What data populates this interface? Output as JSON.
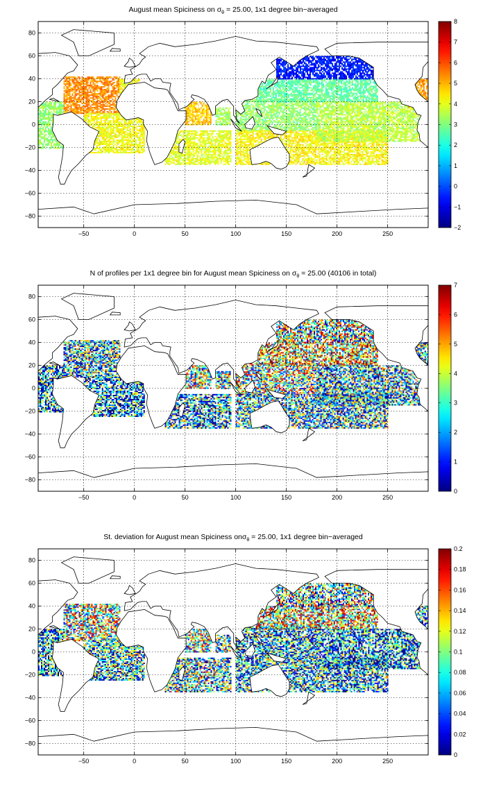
{
  "chart_data": [
    {
      "type": "heatmap",
      "title_prefix": "August mean Spiciness on ",
      "title_symbol": "σ",
      "title_sub": "θ",
      "title_suffix": " = 25.00, 1x1 degree bin−averaged",
      "xlim": [
        -95,
        290
      ],
      "ylim": [
        -90,
        90
      ],
      "x_ticks": [
        "−50",
        "0",
        "50",
        "100",
        "150",
        "200",
        "250"
      ],
      "x_tick_values": [
        -50,
        0,
        50,
        100,
        150,
        200,
        250
      ],
      "y_ticks": [
        "80",
        "60",
        "40",
        "20",
        "0",
        "−20",
        "−40",
        "−60",
        "−80"
      ],
      "y_tick_values": [
        80,
        60,
        40,
        20,
        0,
        -20,
        -40,
        -60,
        -80
      ],
      "grid": true,
      "colorbar": {
        "min": -2,
        "max": 8,
        "colormap": "jet",
        "ticks": [
          "8",
          "7",
          "6",
          "5",
          "4",
          "3",
          "2",
          "1",
          "0",
          "−1",
          "−2"
        ],
        "tick_values": [
          8,
          7,
          6,
          5,
          4,
          3,
          2,
          1,
          0,
          -1,
          -2
        ]
      },
      "regions": [
        {
          "lon": [
            -95,
            -70
          ],
          "lat": [
            -20,
            20
          ],
          "value": 3.2
        },
        {
          "lon": [
            -70,
            -15
          ],
          "lat": [
            10,
            42
          ],
          "value": 5.4
        },
        {
          "lon": [
            -15,
            5
          ],
          "lat": [
            25,
            40
          ],
          "value": 4.2
        },
        {
          "lon": [
            -50,
            10
          ],
          "lat": [
            -25,
            10
          ],
          "value": 4.2
        },
        {
          "lon": [
            30,
            95
          ],
          "lat": [
            -35,
            -5
          ],
          "value": 4.0
        },
        {
          "lon": [
            50,
            75
          ],
          "lat": [
            0,
            20
          ],
          "value": 4.8
        },
        {
          "lon": [
            80,
            95
          ],
          "lat": [
            0,
            15
          ],
          "value": 3.3
        },
        {
          "lon": [
            100,
            180
          ],
          "lat": [
            -5,
            22
          ],
          "value": 3.2
        },
        {
          "lon": [
            120,
            240
          ],
          "lat": [
            20,
            40
          ],
          "value": 2.7
        },
        {
          "lon": [
            140,
            240
          ],
          "lat": [
            40,
            60
          ],
          "value": -0.5
        },
        {
          "lon": [
            100,
            250
          ],
          "lat": [
            -35,
            -5
          ],
          "value": 4.3
        },
        {
          "lon": [
            180,
            285
          ],
          "lat": [
            -15,
            20
          ],
          "value": 3.6
        },
        {
          "lon": [
            270,
            290
          ],
          "lat": [
            15,
            40
          ],
          "value": 5.3
        }
      ]
    },
    {
      "type": "heatmap",
      "title_prefix": "N of profiles per 1x1 degree bin for August mean Spiciness on ",
      "title_symbol": "σ",
      "title_sub": "θ",
      "title_suffix": " = 25.00 (40106 in total)",
      "xlim": [
        -95,
        290
      ],
      "ylim": [
        -90,
        90
      ],
      "x_ticks": [
        "−50",
        "0",
        "50",
        "100",
        "150",
        "200",
        "250"
      ],
      "x_tick_values": [
        -50,
        0,
        50,
        100,
        150,
        200,
        250
      ],
      "y_ticks": [
        "80",
        "60",
        "40",
        "20",
        "0",
        "−20",
        "−40",
        "−60",
        "−80"
      ],
      "y_tick_values": [
        80,
        60,
        40,
        20,
        0,
        -20,
        -40,
        -60,
        -80
      ],
      "grid": true,
      "colorbar": {
        "min": 0,
        "max": 7,
        "colormap": "jet",
        "ticks": [
          "7",
          "6",
          "5",
          "4",
          "3",
          "2",
          "1",
          "0"
        ],
        "tick_values": [
          7,
          6,
          5,
          4,
          3,
          2,
          1,
          0
        ]
      },
      "regions": [
        {
          "lon": [
            -95,
            -70
          ],
          "lat": [
            -20,
            20
          ],
          "value": 2.0
        },
        {
          "lon": [
            -70,
            -15
          ],
          "lat": [
            10,
            42
          ],
          "value": 2.5
        },
        {
          "lon": [
            -50,
            10
          ],
          "lat": [
            -25,
            10
          ],
          "value": 1.8
        },
        {
          "lon": [
            30,
            95
          ],
          "lat": [
            -35,
            -5
          ],
          "value": 2.2
        },
        {
          "lon": [
            50,
            75
          ],
          "lat": [
            0,
            20
          ],
          "value": 3.5
        },
        {
          "lon": [
            80,
            95
          ],
          "lat": [
            0,
            15
          ],
          "value": 3.0
        },
        {
          "lon": [
            100,
            180
          ],
          "lat": [
            -5,
            22
          ],
          "value": 3.5
        },
        {
          "lon": [
            120,
            240
          ],
          "lat": [
            20,
            40
          ],
          "value": 4.5
        },
        {
          "lon": [
            140,
            240
          ],
          "lat": [
            40,
            60
          ],
          "value": 3.5
        },
        {
          "lon": [
            100,
            250
          ],
          "lat": [
            -35,
            -5
          ],
          "value": 2.5
        },
        {
          "lon": [
            180,
            285
          ],
          "lat": [
            -15,
            20
          ],
          "value": 2.5
        },
        {
          "lon": [
            270,
            290
          ],
          "lat": [
            15,
            40
          ],
          "value": 2.5
        }
      ]
    },
    {
      "type": "heatmap",
      "title_prefix": "St. deviation for August mean Spiciness on",
      "title_symbol": "σ",
      "title_sub": "θ",
      "title_suffix": " = 25.00, 1x1 degree bin−averaged",
      "xlim": [
        -95,
        290
      ],
      "ylim": [
        -90,
        90
      ],
      "x_ticks": [
        "−50",
        "0",
        "50",
        "100",
        "150",
        "200",
        "250"
      ],
      "x_tick_values": [
        -50,
        0,
        50,
        100,
        150,
        200,
        250
      ],
      "y_ticks": [
        "80",
        "60",
        "40",
        "20",
        "0",
        "−20",
        "−40",
        "−60",
        "−80"
      ],
      "y_tick_values": [
        80,
        60,
        40,
        20,
        0,
        -20,
        -40,
        -60,
        -80
      ],
      "grid": true,
      "colorbar": {
        "min": 0,
        "max": 0.2,
        "colormap": "jet",
        "ticks": [
          "0.2",
          "0.18",
          "0.16",
          "0.14",
          "0.12",
          "0.1",
          "0.08",
          "0.06",
          "0.04",
          "0.02",
          "0"
        ],
        "tick_values": [
          0.2,
          0.18,
          0.16,
          0.14,
          0.12,
          0.1,
          0.08,
          0.06,
          0.04,
          0.02,
          0
        ]
      },
      "regions": [
        {
          "lon": [
            -95,
            -70
          ],
          "lat": [
            -20,
            20
          ],
          "value": 0.06
        },
        {
          "lon": [
            -70,
            -15
          ],
          "lat": [
            10,
            42
          ],
          "value": 0.11
        },
        {
          "lon": [
            -50,
            10
          ],
          "lat": [
            -25,
            10
          ],
          "value": 0.07
        },
        {
          "lon": [
            30,
            95
          ],
          "lat": [
            -35,
            -5
          ],
          "value": 0.08
        },
        {
          "lon": [
            50,
            75
          ],
          "lat": [
            0,
            20
          ],
          "value": 0.1
        },
        {
          "lon": [
            80,
            95
          ],
          "lat": [
            0,
            15
          ],
          "value": 0.08
        },
        {
          "lon": [
            100,
            180
          ],
          "lat": [
            -5,
            22
          ],
          "value": 0.06
        },
        {
          "lon": [
            120,
            240
          ],
          "lat": [
            20,
            40
          ],
          "value": 0.12
        },
        {
          "lon": [
            140,
            240
          ],
          "lat": [
            40,
            60
          ],
          "value": 0.09
        },
        {
          "lon": [
            100,
            250
          ],
          "lat": [
            -35,
            -5
          ],
          "value": 0.06
        },
        {
          "lon": [
            180,
            285
          ],
          "lat": [
            -15,
            20
          ],
          "value": 0.05
        },
        {
          "lon": [
            270,
            290
          ],
          "lat": [
            15,
            40
          ],
          "value": 0.06
        }
      ]
    }
  ]
}
